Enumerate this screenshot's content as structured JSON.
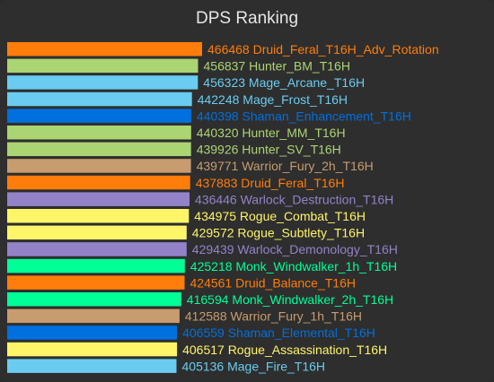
{
  "chart_data": {
    "type": "bar",
    "orientation": "horizontal",
    "title": "DPS Ranking",
    "xlabel": "",
    "ylabel": "",
    "grid": false,
    "legend": "none",
    "xlim": [
      0,
      466468
    ],
    "bars": [
      {
        "label": "Druid_Feral_T16H_Adv_Rotation",
        "value": 466468,
        "color": "#ff7d0a"
      },
      {
        "label": "Hunter_BM_T16H",
        "value": 456837,
        "color": "#abd473"
      },
      {
        "label": "Mage_Arcane_T16H",
        "value": 456323,
        "color": "#69ccf0"
      },
      {
        "label": "Mage_Frost_T16H",
        "value": 442248,
        "color": "#69ccf0"
      },
      {
        "label": "Shaman_Enhancement_T16H",
        "value": 440398,
        "color": "#0070de"
      },
      {
        "label": "Hunter_MM_T16H",
        "value": 440320,
        "color": "#abd473"
      },
      {
        "label": "Hunter_SV_T16H",
        "value": 439926,
        "color": "#abd473"
      },
      {
        "label": "Warrior_Fury_2h_T16H",
        "value": 439771,
        "color": "#c79c6e"
      },
      {
        "label": "Druid_Feral_T16H",
        "value": 437883,
        "color": "#ff7d0a"
      },
      {
        "label": "Warlock_Destruction_T16H",
        "value": 436446,
        "color": "#9482c9"
      },
      {
        "label": "Rogue_Combat_T16H",
        "value": 434975,
        "color": "#fff569"
      },
      {
        "label": "Rogue_Subtlety_T16H",
        "value": 429572,
        "color": "#fff569"
      },
      {
        "label": "Warlock_Demonology_T16H",
        "value": 429439,
        "color": "#9482c9"
      },
      {
        "label": "Monk_Windwalker_1h_T16H",
        "value": 425218,
        "color": "#00ff96"
      },
      {
        "label": "Druid_Balance_T16H",
        "value": 424561,
        "color": "#ff7d0a"
      },
      {
        "label": "Monk_Windwalker_2h_T16H",
        "value": 416594,
        "color": "#00ff96"
      },
      {
        "label": "Warrior_Fury_1h_T16H",
        "value": 412588,
        "color": "#c79c6e"
      },
      {
        "label": "Shaman_Elemental_T16H",
        "value": 406559,
        "color": "#0070de"
      },
      {
        "label": "Rogue_Assassination_T16H",
        "value": 406517,
        "color": "#fff569"
      },
      {
        "label": "Mage_Fire_T16H",
        "value": 405136,
        "color": "#69ccf0"
      }
    ]
  }
}
